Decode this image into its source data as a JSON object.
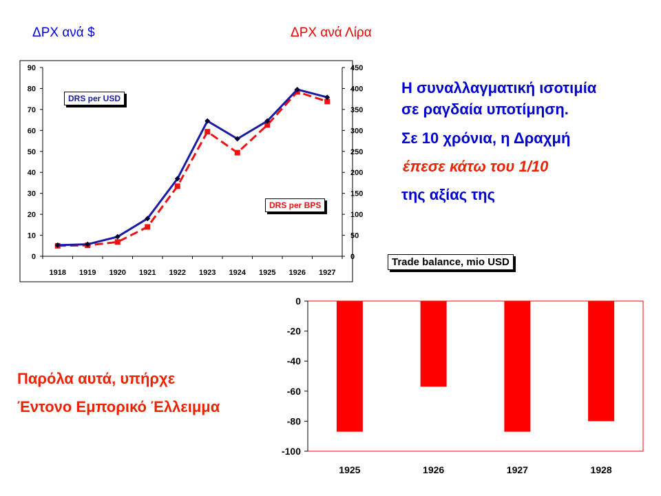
{
  "headers": {
    "usd_header": "ΔΡΧ ανά $",
    "lira_header": "ΔΡΧ ανά Λίρα"
  },
  "text_block": {
    "line1": "Η συναλλαγματική ισοτιμία",
    "line2": "σε ραγδαία υποτίμηση.",
    "line3": "Σε 10 χρόνια, η Δραχμή",
    "line4": "έπεσε κάτω του 1/10",
    "line5": "της αξίας της"
  },
  "deficit_text": {
    "line1": "Παρόλα αυτά, υπήρχε",
    "line2": "Έντονο Εμπορικό Έλλειμμα"
  },
  "colors": {
    "usd_series": "#1a1aa6",
    "bps_series": "#ee1111",
    "bar": "#ff0000",
    "blue_text": "#0000cc",
    "red_text": "#ee2200"
  },
  "chart_data": [
    {
      "type": "line",
      "categories": [
        "1918",
        "1919",
        "1920",
        "1921",
        "1922",
        "1923",
        "1924",
        "1925",
        "1926",
        "1927"
      ],
      "series": [
        {
          "name": "DRS per USD",
          "axis": "left",
          "values": [
            5.3,
            5.7,
            9.3,
            18,
            37,
            64.5,
            56,
            64.5,
            79.5,
            75.8
          ]
        },
        {
          "name": "DRS per BPS",
          "axis": "right",
          "values": [
            25,
            26,
            34,
            70,
            167,
            297,
            247,
            313,
            392,
            369
          ]
        }
      ],
      "ylim_left": [
        0,
        90
      ],
      "yticks_left": [
        "0",
        "10",
        "20",
        "30",
        "40",
        "50",
        "60",
        "70",
        "80",
        "90"
      ],
      "ylim_right": [
        0,
        450
      ],
      "yticks_right": [
        "0",
        "50",
        "100",
        "150",
        "200",
        "250",
        "300",
        "350",
        "400",
        "450"
      ],
      "grid": false,
      "legend": "inside labels"
    },
    {
      "type": "bar",
      "title": "Trade balance, mio USD",
      "categories": [
        "1925",
        "1926",
        "1927",
        "1928"
      ],
      "values": [
        -87,
        -57,
        -87,
        -80
      ],
      "ylim": [
        -100,
        0
      ],
      "yticks": [
        "0",
        "-20",
        "-40",
        "-60",
        "-80",
        "-100"
      ],
      "grid": false
    }
  ]
}
